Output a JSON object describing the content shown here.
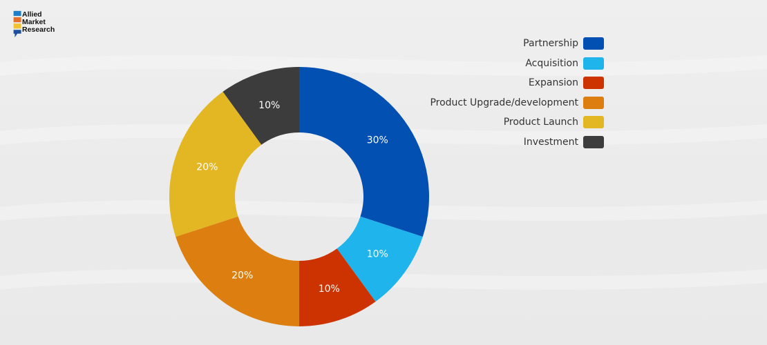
{
  "brand": {
    "line1": "Allied",
    "line2": "Market",
    "line3": "Research",
    "colors": [
      "#1f7ec8",
      "#e6702a",
      "#f1c232",
      "#1b4f9b"
    ]
  },
  "chart_data": {
    "type": "pie",
    "variant": "donut",
    "legend_position": "top-right",
    "categories": [
      "Partnership",
      "Acquisition",
      "Expansion",
      "Product Upgrade/development",
      "Product Launch",
      "Investment"
    ],
    "values": [
      30,
      10,
      10,
      20,
      20,
      10
    ],
    "labels": [
      "30%",
      "10%",
      "10%",
      "20%",
      "20%",
      "10%"
    ],
    "colors": [
      "#0350b3",
      "#1fb5ec",
      "#cc3300",
      "#dc7f10",
      "#e3b723",
      "#3c3c3c"
    ]
  }
}
